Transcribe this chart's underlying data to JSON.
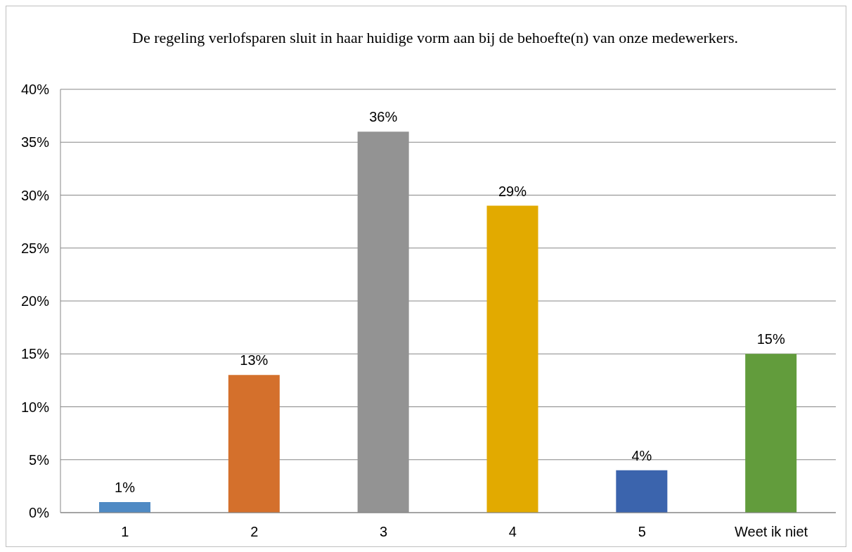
{
  "chart_data": {
    "type": "bar",
    "title": "De regeling verlofsparen sluit in haar huidige vorm aan bij de behoefte(n) van onze medewerkers.",
    "categories": [
      "1",
      "2",
      "3",
      "4",
      "5",
      "Weet ik niet"
    ],
    "values": [
      1,
      13,
      36,
      29,
      4,
      15
    ],
    "colors": [
      "#4f8ac4",
      "#d4702c",
      "#939393",
      "#e2aa00",
      "#3b64ad",
      "#629c3c"
    ],
    "value_labels": [
      "1%",
      "13%",
      "36%",
      "29%",
      "4%",
      "15%"
    ],
    "ylim": [
      0,
      40
    ],
    "yticks": [
      {
        "value": 0,
        "label": "0%"
      },
      {
        "value": 5,
        "label": "5%"
      },
      {
        "value": 10,
        "label": "10%"
      },
      {
        "value": 15,
        "label": "15%"
      },
      {
        "value": 20,
        "label": "20%"
      },
      {
        "value": 25,
        "label": "25%"
      },
      {
        "value": 30,
        "label": "30%"
      },
      {
        "value": 35,
        "label": "35%"
      },
      {
        "value": 40,
        "label": "40%"
      }
    ],
    "grid": "y"
  }
}
